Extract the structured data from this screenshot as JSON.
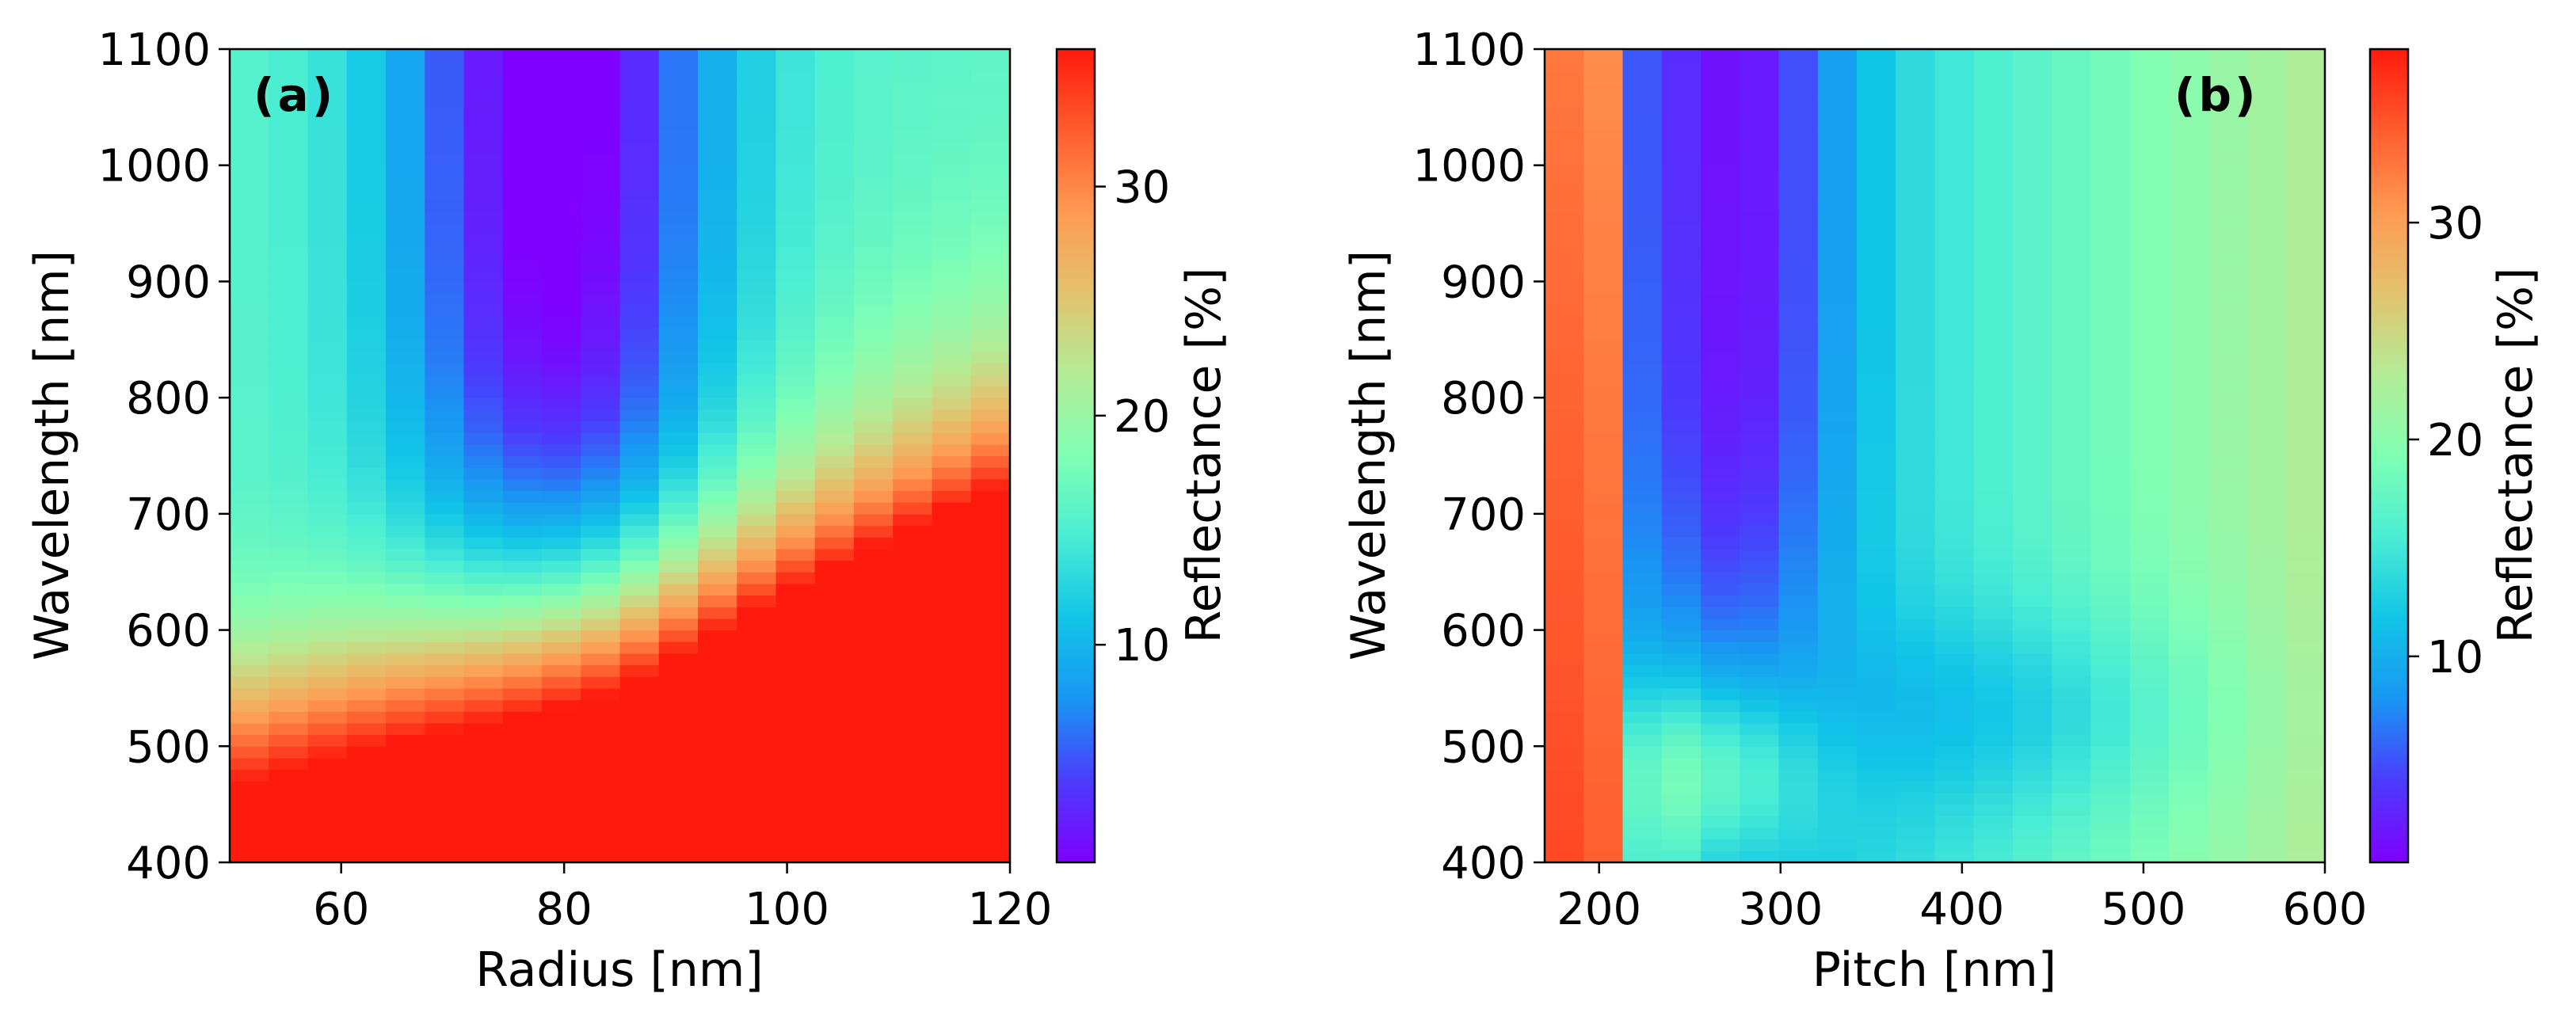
{
  "chart_data": [
    {
      "type": "heatmap",
      "panel_label": "(a)",
      "xlabel": "Radius [nm]",
      "ylabel": "Wavelength [nm]",
      "xlim": [
        50,
        120
      ],
      "ylim": [
        400,
        1100
      ],
      "x_ticks": [
        60,
        80,
        100,
        120
      ],
      "y_ticks": [
        400,
        500,
        600,
        700,
        800,
        900,
        1000,
        1100
      ],
      "x_tick_labels": [
        "60",
        "80",
        "100",
        "120"
      ],
      "y_tick_labels": [
        "400",
        "500",
        "600",
        "700",
        "800",
        "900",
        "1000",
        "1100"
      ],
      "n_columns": 20,
      "colorscale": "rainbow",
      "colorbar": {
        "label": "Reflectance [%]",
        "range": [
          0.5,
          36
        ],
        "ticks": [
          10,
          20,
          30
        ],
        "tick_labels": [
          "10",
          "20",
          "30"
        ]
      },
      "z_model": "reflectance map vs radius and wavelength: dark minimum (~1%) near radius 75-90 nm at long wavelength, broad high band (~30%) at short wavelength rising with radius, maximum ~36% at radius 120 nm, 400 nm"
    },
    {
      "type": "heatmap",
      "panel_label": "(b)",
      "xlabel": "Pitch [nm]",
      "ylabel": "Wavelength [nm]",
      "xlim": [
        170,
        600
      ],
      "ylim": [
        400,
        1100
      ],
      "x_ticks": [
        200,
        300,
        400,
        500,
        600
      ],
      "y_ticks": [
        400,
        500,
        600,
        700,
        800,
        900,
        1000,
        1100
      ],
      "x_tick_labels": [
        "200",
        "300",
        "400",
        "500",
        "600"
      ],
      "y_tick_labels": [
        "400",
        "500",
        "600",
        "700",
        "800",
        "900",
        "1000",
        "1100"
      ],
      "n_columns": 20,
      "colorscale": "rainbow",
      "colorbar": {
        "label": "Reflectance [%]",
        "range": [
          0.5,
          38
        ],
        "ticks": [
          10,
          20,
          30
        ],
        "tick_labels": [
          "10",
          "20",
          "30"
        ]
      },
      "z_model": "reflectance map vs pitch and wavelength: high values (~30-38%) at small pitch 170-200 nm, dark minimum (~1%) near pitch 240-330 nm at long wavelength, rising to ~22-25% at pitch 600 nm"
    }
  ]
}
